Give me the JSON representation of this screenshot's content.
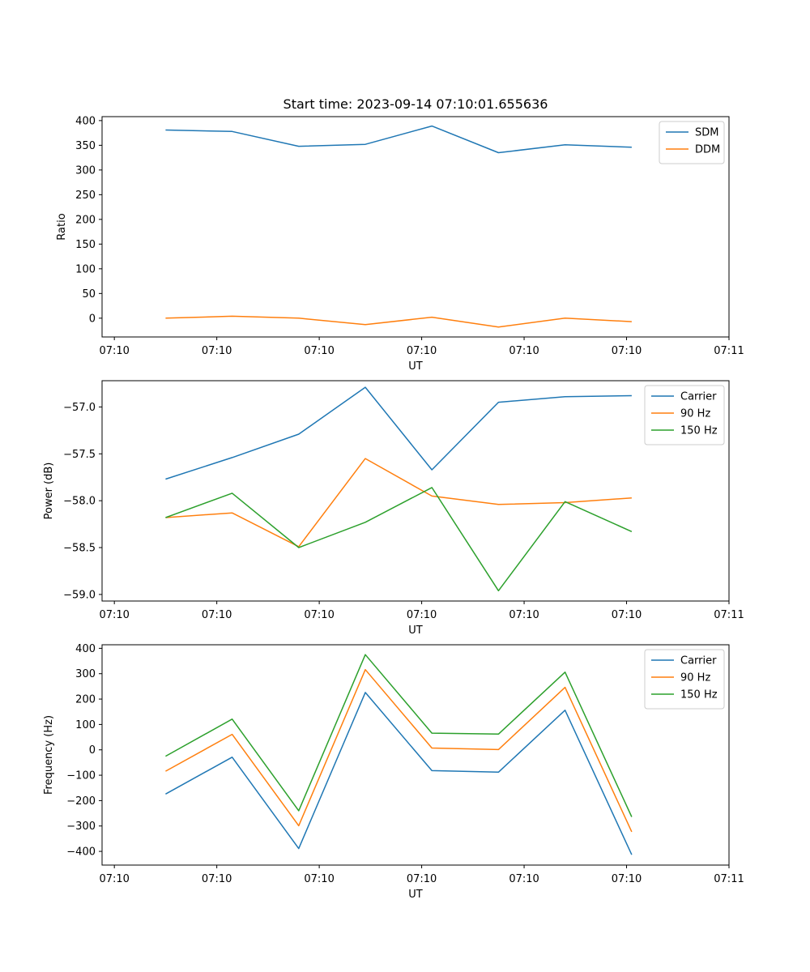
{
  "figure": {
    "title": "Start time: 2023-09-14 07:10:01.655636"
  },
  "colors": {
    "c0": "#1f77b4",
    "c1": "#ff7f0e",
    "c2": "#2ca02c"
  },
  "chart_data": [
    {
      "type": "line",
      "title": "Start time: 2023-09-14 07:10:01.655636",
      "xlabel": "UT",
      "ylabel": "Ratio",
      "x": [
        0.5,
        1.15,
        1.8,
        2.45,
        3.1,
        3.75,
        4.4,
        5.05
      ],
      "xlim": [
        -0.12,
        6.0
      ],
      "xticks": [
        0,
        1,
        2,
        3,
        4,
        5,
        6
      ],
      "xtick_labels": [
        "07:10",
        "07:10",
        "07:10",
        "07:10",
        "07:10",
        "07:10",
        "07:11"
      ],
      "ylim": [
        -38,
        408
      ],
      "yticks": [
        0,
        50,
        100,
        150,
        200,
        250,
        300,
        350,
        400
      ],
      "ytick_labels": [
        "0",
        "50",
        "100",
        "150",
        "200",
        "250",
        "300",
        "350",
        "400"
      ],
      "legend": "top-right",
      "series": [
        {
          "name": "SDM",
          "color": "#1f77b4",
          "values": [
            381,
            378,
            348,
            352,
            389,
            335,
            351,
            346
          ]
        },
        {
          "name": "DDM",
          "color": "#ff7f0e",
          "values": [
            0,
            4,
            0,
            -13,
            2,
            -18,
            0,
            -7
          ]
        }
      ]
    },
    {
      "type": "line",
      "xlabel": "UT",
      "ylabel": "Power (dB)",
      "x": [
        0.5,
        1.15,
        1.8,
        2.45,
        3.1,
        3.75,
        4.4,
        5.05
      ],
      "xlim": [
        -0.12,
        6.0
      ],
      "xticks": [
        0,
        1,
        2,
        3,
        4,
        5,
        6
      ],
      "xtick_labels": [
        "07:10",
        "07:10",
        "07:10",
        "07:10",
        "07:10",
        "07:10",
        "07:11"
      ],
      "ylim": [
        -59.07,
        -56.72
      ],
      "yticks": [
        -59.0,
        -58.5,
        -58.0,
        -57.5,
        -57.0
      ],
      "ytick_labels": [
        "−59.0",
        "−58.5",
        "−58.0",
        "−57.5",
        "−57.0"
      ],
      "legend": "top-right",
      "series": [
        {
          "name": "Carrier",
          "color": "#1f77b4",
          "values": [
            -57.77,
            -57.54,
            -57.29,
            -56.79,
            -57.67,
            -56.95,
            -56.89,
            -56.88
          ]
        },
        {
          "name": "90 Hz",
          "color": "#ff7f0e",
          "values": [
            -58.18,
            -58.13,
            -58.49,
            -57.55,
            -57.95,
            -58.04,
            -58.02,
            -57.97
          ]
        },
        {
          "name": "150 Hz",
          "color": "#2ca02c",
          "values": [
            -58.18,
            -57.92,
            -58.5,
            -58.23,
            -57.86,
            -58.96,
            -58.01,
            -58.33
          ]
        }
      ]
    },
    {
      "type": "line",
      "xlabel": "UT",
      "ylabel": "Frequency (Hz)",
      "x": [
        0.5,
        1.15,
        1.8,
        2.45,
        3.1,
        3.75,
        4.4,
        5.05
      ],
      "xlim": [
        -0.12,
        6.0
      ],
      "xticks": [
        0,
        1,
        2,
        3,
        4,
        5,
        6
      ],
      "xtick_labels": [
        "07:10",
        "07:10",
        "07:10",
        "07:10",
        "07:10",
        "07:10",
        "07:11"
      ],
      "ylim": [
        -454,
        414
      ],
      "yticks": [
        -400,
        -300,
        -200,
        -100,
        0,
        100,
        200,
        300,
        400
      ],
      "ytick_labels": [
        "−400",
        "−300",
        "−200",
        "−100",
        "0",
        "100",
        "200",
        "300",
        "400"
      ],
      "legend": "top-right",
      "series": [
        {
          "name": "Carrier",
          "color": "#1f77b4",
          "values": [
            -174,
            -29,
            -389,
            226,
            -82,
            -88,
            156,
            -413
          ]
        },
        {
          "name": "90 Hz",
          "color": "#ff7f0e",
          "values": [
            -84,
            61,
            -299,
            316,
            7,
            1,
            246,
            -323
          ]
        },
        {
          "name": "150 Hz",
          "color": "#2ca02c",
          "values": [
            -25,
            121,
            -240,
            375,
            66,
            62,
            306,
            -264
          ]
        }
      ]
    }
  ]
}
